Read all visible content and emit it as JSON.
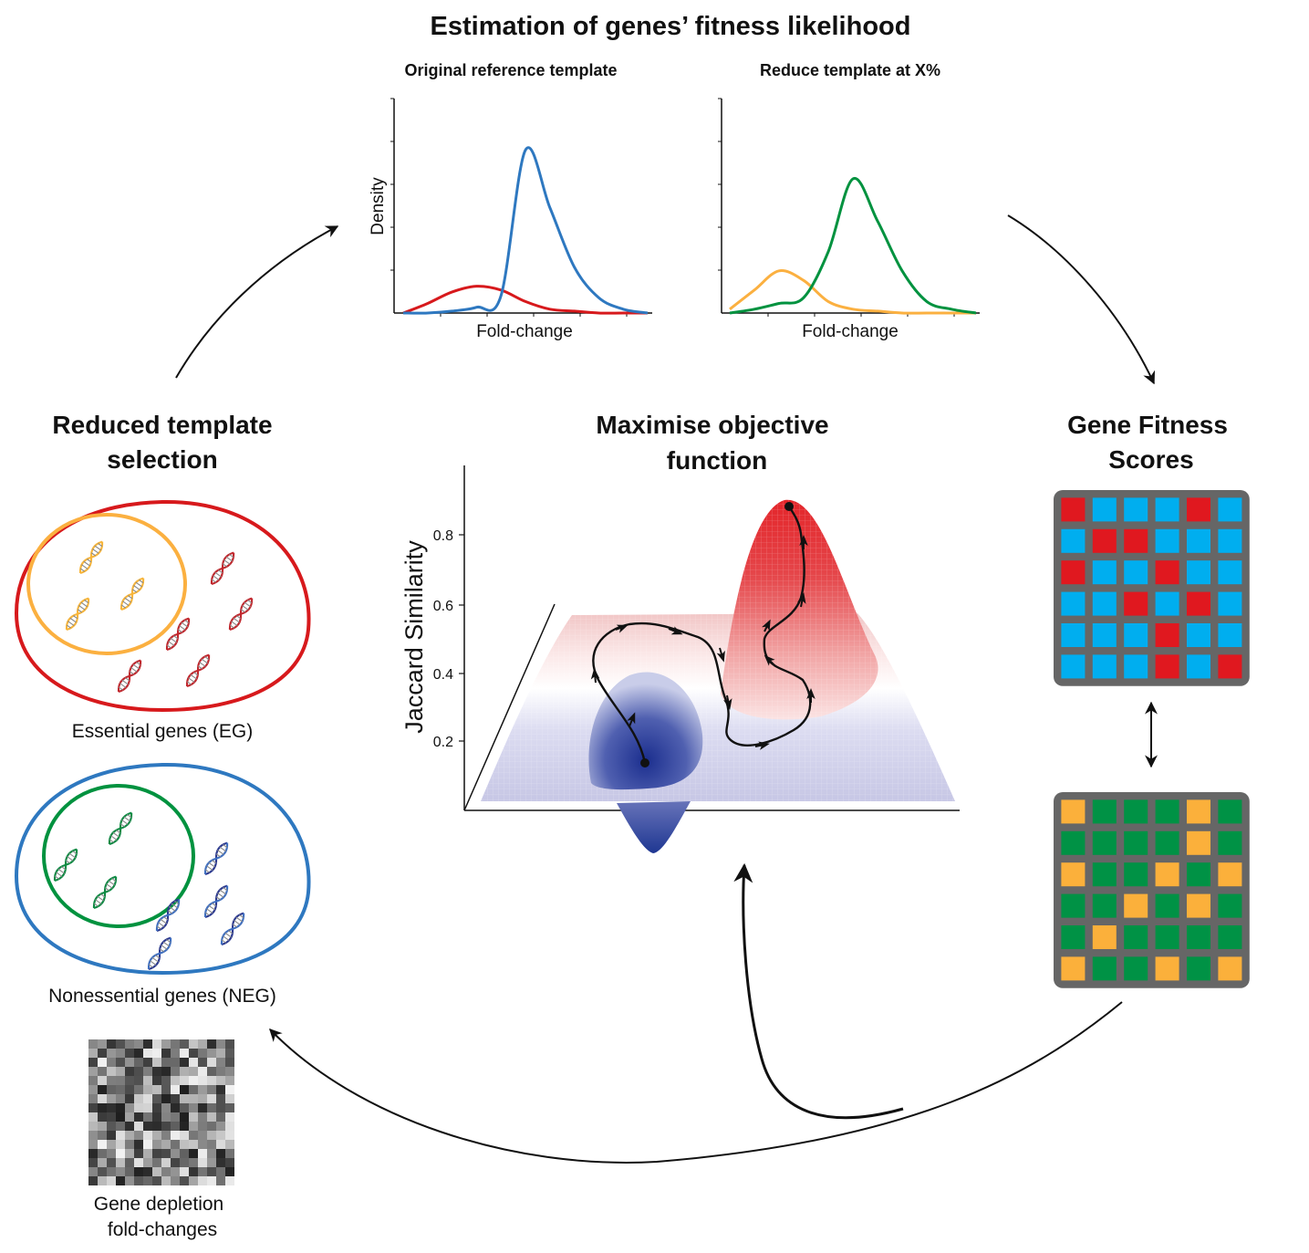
{
  "title": "Estimation of genes’ fitness likelihood",
  "panels": {
    "original": {
      "title": "Original reference template",
      "xlabel": "Fold-change",
      "ylabel": "Density"
    },
    "reduced": {
      "title": "Reduce template at X%",
      "xlabel": "Fold-change"
    }
  },
  "left": {
    "title_line1": "Reduced template",
    "title_line2": "selection",
    "eg_caption": "Essential genes (EG)",
    "neg_caption": "Nonessential genes (NEG)",
    "matrix_caption_line1": "Gene depletion",
    "matrix_caption_line2": "fold-changes"
  },
  "center": {
    "title_line1": "Maximise objective",
    "title_line2": "function",
    "ylabel": "Jaccard Similarity",
    "yticks": [
      "0.2",
      "0.4",
      "0.6",
      "0.8"
    ]
  },
  "right": {
    "title_line1": "Gene Fitness",
    "title_line2": "Scores"
  },
  "colors": {
    "eg_red": "#d7191c",
    "neg_blue": "#2e78c0",
    "subset_orange": "#fbb040",
    "subset_green": "#00923f",
    "grid_red": "#e0181f",
    "grid_blue": "#00aeef",
    "grid_orange": "#fbb03b",
    "grid_green": "#009245",
    "grid_frame": "#666666"
  },
  "chart_data": [
    {
      "type": "line",
      "title": "Original reference template",
      "xlabel": "Fold-change",
      "ylabel": "Density",
      "x": [
        0,
        0.1,
        0.2,
        0.3,
        0.4,
        0.5,
        0.6,
        0.7,
        0.8,
        0.9,
        1.0
      ],
      "series": [
        {
          "color": "#d7191c",
          "values": [
            0.0,
            0.05,
            0.11,
            0.14,
            0.12,
            0.06,
            0.02,
            0.01,
            0.0,
            0.0,
            0.0
          ]
        },
        {
          "color": "#2e78c0",
          "values": [
            0.0,
            0.0,
            0.01,
            0.03,
            0.09,
            0.85,
            0.55,
            0.24,
            0.08,
            0.02,
            0.0
          ]
        }
      ]
    },
    {
      "type": "line",
      "title": "Reduce template at X%",
      "xlabel": "Fold-change",
      "x": [
        0,
        0.1,
        0.2,
        0.3,
        0.4,
        0.5,
        0.6,
        0.7,
        0.8,
        0.9,
        1.0
      ],
      "series": [
        {
          "color": "#fbb040",
          "values": [
            0.02,
            0.12,
            0.22,
            0.17,
            0.06,
            0.02,
            0.01,
            0.0,
            0.0,
            0.0,
            0.0
          ]
        },
        {
          "color": "#00923f",
          "values": [
            0.0,
            0.02,
            0.05,
            0.08,
            0.32,
            0.7,
            0.48,
            0.22,
            0.06,
            0.02,
            0.0
          ]
        }
      ]
    }
  ],
  "grids": {
    "top": [
      [
        "R",
        "B",
        "B",
        "B",
        "R",
        "B"
      ],
      [
        "B",
        "R",
        "R",
        "B",
        "B",
        "B"
      ],
      [
        "R",
        "B",
        "B",
        "R",
        "B",
        "B"
      ],
      [
        "B",
        "B",
        "R",
        "B",
        "R",
        "B"
      ],
      [
        "B",
        "B",
        "B",
        "R",
        "B",
        "B"
      ],
      [
        "B",
        "B",
        "B",
        "R",
        "B",
        "R"
      ]
    ],
    "bottom": [
      [
        "O",
        "G",
        "G",
        "G",
        "O",
        "G"
      ],
      [
        "G",
        "G",
        "G",
        "G",
        "O",
        "G"
      ],
      [
        "O",
        "G",
        "G",
        "O",
        "G",
        "O"
      ],
      [
        "G",
        "G",
        "O",
        "G",
        "O",
        "G"
      ],
      [
        "G",
        "O",
        "G",
        "G",
        "G",
        "G"
      ],
      [
        "O",
        "G",
        "G",
        "O",
        "G",
        "O"
      ]
    ]
  }
}
